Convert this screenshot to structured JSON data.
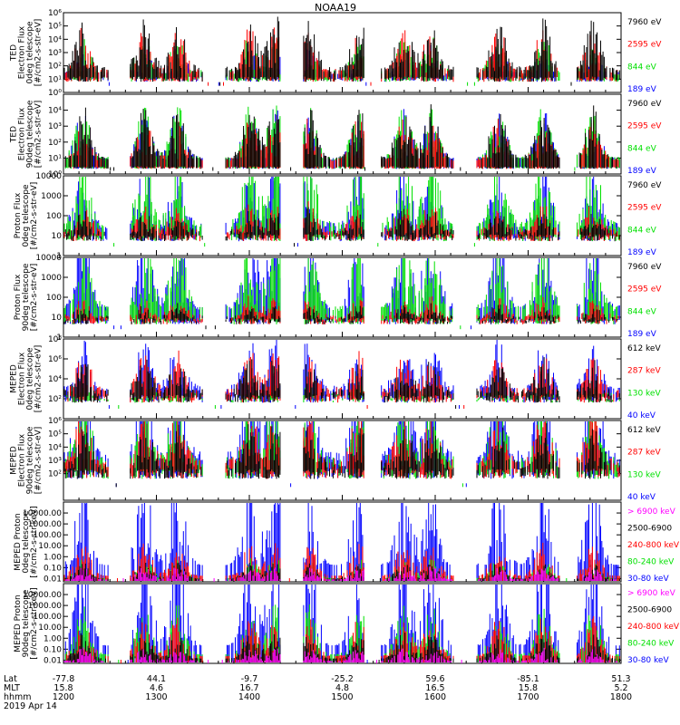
{
  "title": "NOAA19",
  "date_label": "2019 Apr 14",
  "colors": {
    "black": "#000000",
    "red": "#ff0000",
    "green": "#00e000",
    "blue": "#0000ff",
    "magenta": "#ff00ff"
  },
  "footer": {
    "row_labels": [
      "Lat",
      "MLT",
      "hhmm"
    ],
    "lat": [
      "-77.8",
      "44.1",
      "-9.7",
      "-25.2",
      "59.6",
      "-85.1",
      "51.3"
    ],
    "mlt": [
      "15.8",
      "4.6",
      "16.7",
      "4.8",
      "16.5",
      "15.8",
      "5.2"
    ],
    "hhmm": [
      "1200",
      "1300",
      "1400",
      "1500",
      "1600",
      "1700",
      "1800"
    ]
  },
  "chart_data": [
    {
      "type": "scatter",
      "ylabel": [
        "TED",
        "Electron Flux",
        "0deg telescope",
        "[#/cm2-s-str-eV]"
      ],
      "yscale": "log",
      "ylim": [
        1,
        1000000
      ],
      "yticks": [
        {
          "v": 1,
          "t": "10⁰"
        },
        {
          "v": 10,
          "t": "10¹"
        },
        {
          "v": 100,
          "t": "10²"
        },
        {
          "v": 1000,
          "t": "10³"
        },
        {
          "v": 10000,
          "t": "10⁴"
        },
        {
          "v": 100000,
          "t": "10⁵"
        },
        {
          "v": 1000000,
          "t": "10⁶"
        }
      ],
      "legend": [
        {
          "name": "7960 eV",
          "color": "black"
        },
        {
          "name": "2595 eV",
          "color": "red"
        },
        {
          "name": "844 eV",
          "color": "green"
        },
        {
          "name": "189 eV",
          "color": "blue"
        }
      ],
      "profile": "ted",
      "hmax": [
        1.6,
        1.3,
        1.1,
        0.8
      ],
      "base": 1.0
    },
    {
      "type": "scatter",
      "ylabel": [
        "TED",
        "Electron Flux",
        "90deg telescope",
        "[#/cm2-s-str-eV]"
      ],
      "yscale": "log",
      "ylim": [
        1,
        100000
      ],
      "yticks": [
        {
          "v": 1,
          "t": "10⁰"
        },
        {
          "v": 10,
          "t": "10¹"
        },
        {
          "v": 100,
          "t": "10²"
        },
        {
          "v": 1000,
          "t": "10³"
        },
        {
          "v": 10000,
          "t": "10⁴"
        }
      ],
      "legend": [
        {
          "name": "7960 eV",
          "color": "black"
        },
        {
          "name": "2595 eV",
          "color": "red"
        },
        {
          "name": "844 eV",
          "color": "green"
        },
        {
          "name": "189 eV",
          "color": "blue"
        }
      ],
      "profile": "ted",
      "hmax": [
        1.6,
        1.3,
        1.6,
        1.5
      ],
      "base": 0.4
    },
    {
      "type": "scatter",
      "ylabel": [
        "Proton Flux",
        "0deg telescope",
        "[#/cm2-s-str-eV]"
      ],
      "yscale": "log",
      "ylim": [
        1,
        10000
      ],
      "yticks": [
        {
          "v": 1,
          "t": "1"
        },
        {
          "v": 10,
          "t": "10"
        },
        {
          "v": 100,
          "t": "100"
        },
        {
          "v": 1000,
          "t": "1000"
        },
        {
          "v": 10000,
          "t": "10000"
        }
      ],
      "legend": [
        {
          "name": "7960 eV",
          "color": "black"
        },
        {
          "name": "2595 eV",
          "color": "red"
        },
        {
          "name": "844 eV",
          "color": "green"
        },
        {
          "name": "189 eV",
          "color": "blue"
        }
      ],
      "profile": "proton",
      "hmax": [
        0.7,
        0.9,
        2.2,
        1.9
      ],
      "base": 0.9
    },
    {
      "type": "scatter",
      "ylabel": [
        "Proton Flux",
        "90deg telescope",
        "[#/cm2-s-str-eV]"
      ],
      "yscale": "log",
      "ylim": [
        1,
        10000
      ],
      "yticks": [
        {
          "v": 1,
          "t": "1"
        },
        {
          "v": 10,
          "t": "10"
        },
        {
          "v": 100,
          "t": "100"
        },
        {
          "v": 1000,
          "t": "1000"
        },
        {
          "v": 10000,
          "t": "10000"
        }
      ],
      "legend": [
        {
          "name": "7960 eV",
          "color": "black"
        },
        {
          "name": "2595 eV",
          "color": "red"
        },
        {
          "name": "844 eV",
          "color": "green"
        },
        {
          "name": "189 eV",
          "color": "blue"
        }
      ],
      "profile": "proton",
      "hmax": [
        0.4,
        0.6,
        2.2,
        2.4
      ],
      "base": 0.8
    },
    {
      "type": "scatter",
      "ylabel": [
        "MEPED",
        "Electron Flux",
        "0deg telescope",
        "[#/cm2-s-str-eV]"
      ],
      "yscale": "log",
      "ylim": [
        1,
        100000000
      ],
      "yticks": [
        {
          "v": 100,
          "t": "10²"
        },
        {
          "v": 10000,
          "t": "10⁴"
        },
        {
          "v": 1000000,
          "t": "10⁶"
        },
        {
          "v": 100000000,
          "t": "10⁸"
        }
      ],
      "legend": [
        {
          "name": "612 keV",
          "color": "black"
        },
        {
          "name": "287 keV",
          "color": "red"
        },
        {
          "name": "130 keV",
          "color": "green"
        },
        {
          "name": "40 keV",
          "color": "blue"
        }
      ],
      "profile": "meped0",
      "hmax": [
        1.0,
        1.2,
        0.3,
        1.6
      ],
      "base": 2.0
    },
    {
      "type": "scatter",
      "ylabel": [
        "MEPED",
        "Electron Flux",
        "90deg telescope",
        "[#/cm2-s-str-eV]"
      ],
      "yscale": "log",
      "ylim": [
        1,
        1000000
      ],
      "yticks": [
        {
          "v": 100,
          "t": "10²"
        },
        {
          "v": 1000,
          "t": "10³"
        },
        {
          "v": 10000,
          "t": "10⁴"
        },
        {
          "v": 100000,
          "t": "10⁵"
        },
        {
          "v": 1000000,
          "t": "10⁶"
        }
      ],
      "legend": [
        {
          "name": "612 keV",
          "color": "black"
        },
        {
          "name": "287 keV",
          "color": "red"
        },
        {
          "name": "130 keV",
          "color": "green"
        },
        {
          "name": "40 keV",
          "color": "blue"
        }
      ],
      "profile": "meped90",
      "hmax": [
        1.3,
        1.6,
        2.0,
        2.8
      ],
      "base": 2.0
    },
    {
      "type": "scatter",
      "ylabel": [
        "MEPED Proton",
        "0deg telescope",
        "[#/cm2-s-str-keV]"
      ],
      "yscale": "log",
      "ylim": [
        0.005,
        100000
      ],
      "yticks": [
        {
          "v": 0.01,
          "t": "0.01"
        },
        {
          "v": 0.1,
          "t": "0.10"
        },
        {
          "v": 1,
          "t": "1.00"
        },
        {
          "v": 10,
          "t": "10.00"
        },
        {
          "v": 100,
          "t": "100.00"
        },
        {
          "v": 1000,
          "t": "1000.00"
        },
        {
          "v": 10000,
          "t": "10000.00"
        }
      ],
      "legend": [
        {
          "name": "> 6900 keV",
          "color": "magenta"
        },
        {
          "name": "2500-6900",
          "color": "black"
        },
        {
          "name": "240-800 keV",
          "color": "red"
        },
        {
          "name": "80-240 keV",
          "color": "green"
        },
        {
          "name": "30-80 keV",
          "color": "blue"
        }
      ],
      "profile": "mepedp",
      "hmax": [
        0.4,
        0.5,
        1.0,
        0.6,
        2.8
      ],
      "base": 0.0
    },
    {
      "type": "scatter",
      "ylabel": [
        "MEPED Proton",
        "90deg telescope",
        "[#/cm2-s-str-keV]"
      ],
      "yscale": "log",
      "ylim": [
        0.005,
        100000
      ],
      "yticks": [
        {
          "v": 0.01,
          "t": "0.01"
        },
        {
          "v": 0.1,
          "t": "0.10"
        },
        {
          "v": 1,
          "t": "1.00"
        },
        {
          "v": 10,
          "t": "10.00"
        },
        {
          "v": 100,
          "t": "100.00"
        },
        {
          "v": 1000,
          "t": "1000.00"
        },
        {
          "v": 10000,
          "t": "10000.00"
        }
      ],
      "legend": [
        {
          "name": "> 6900 keV",
          "color": "magenta"
        },
        {
          "name": "2500-6900",
          "color": "black"
        },
        {
          "name": "240-800 keV",
          "color": "red"
        },
        {
          "name": "80-240 keV",
          "color": "green"
        },
        {
          "name": "30-80 keV",
          "color": "blue"
        }
      ],
      "profile": "mepedp",
      "hmax": [
        0.4,
        0.8,
        1.2,
        1.5,
        3.0
      ],
      "base": 0.0
    }
  ]
}
